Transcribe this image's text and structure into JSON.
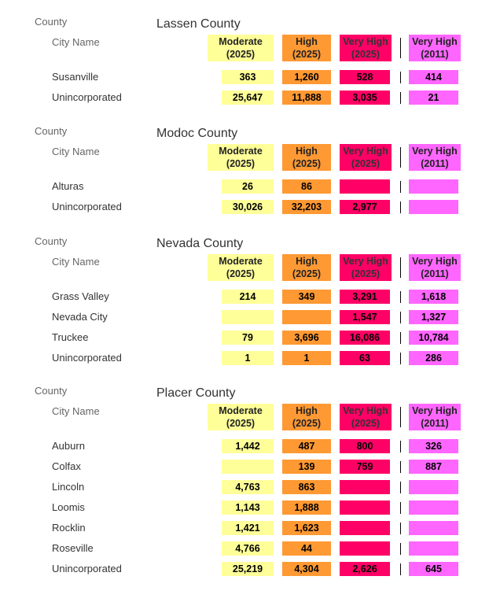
{
  "labels": {
    "county": "County",
    "city_name": "City Name"
  },
  "headers": {
    "moderate_2025": [
      "Moderate",
      "(2025)"
    ],
    "high_2025": [
      "High",
      "(2025)"
    ],
    "very_high_2025": [
      "Very High",
      "(2025)"
    ],
    "very_high_2011": [
      "Very High",
      "(2011)"
    ]
  },
  "colors": {
    "moderate": "#ffff99",
    "high": "#ff9933",
    "very_high": "#ff0066",
    "very_high_2011": "#ff66ff"
  },
  "counties": [
    {
      "name": "Lassen County",
      "rows": [
        {
          "city": "Susanville",
          "moderate": "363",
          "high": "1,260",
          "very_high_2025": "528",
          "very_high_2011": "414"
        },
        {
          "city": "Unincorporated",
          "moderate": "25,647",
          "high": "11,888",
          "very_high_2025": "3,035",
          "very_high_2011": "21"
        }
      ]
    },
    {
      "name": "Modoc County",
      "rows": [
        {
          "city": "Alturas",
          "moderate": "26",
          "high": "86",
          "very_high_2025": "",
          "very_high_2011": ""
        },
        {
          "city": "Unincorporated",
          "moderate": "30,026",
          "high": "32,203",
          "very_high_2025": "2,977",
          "very_high_2011": ""
        }
      ]
    },
    {
      "name": "Nevada County",
      "rows": [
        {
          "city": "Grass Valley",
          "moderate": "214",
          "high": "349",
          "very_high_2025": "3,291",
          "very_high_2011": "1,618"
        },
        {
          "city": "Nevada City",
          "moderate": "",
          "high": "",
          "very_high_2025": "1,547",
          "very_high_2011": "1,327"
        },
        {
          "city": "Truckee",
          "moderate": "79",
          "high": "3,696",
          "very_high_2025": "16,086",
          "very_high_2011": "10,784"
        },
        {
          "city": "Unincorporated",
          "moderate": "1",
          "high": "1",
          "very_high_2025": "63",
          "very_high_2011": "286"
        }
      ]
    },
    {
      "name": "Placer County",
      "rows": [
        {
          "city": "Auburn",
          "moderate": "1,442",
          "high": "487",
          "very_high_2025": "800",
          "very_high_2011": "326"
        },
        {
          "city": "Colfax",
          "moderate": "",
          "high": "139",
          "very_high_2025": "759",
          "very_high_2011": "887"
        },
        {
          "city": "Lincoln",
          "moderate": "4,763",
          "high": "863",
          "very_high_2025": "",
          "very_high_2011": ""
        },
        {
          "city": "Loomis",
          "moderate": "1,143",
          "high": "1,888",
          "very_high_2025": "",
          "very_high_2011": ""
        },
        {
          "city": "Rocklin",
          "moderate": "1,421",
          "high": "1,623",
          "very_high_2025": "",
          "very_high_2011": ""
        },
        {
          "city": "Roseville",
          "moderate": "4,766",
          "high": "44",
          "very_high_2025": "",
          "very_high_2011": ""
        },
        {
          "city": "Unincorporated",
          "moderate": "25,219",
          "high": "4,304",
          "very_high_2025": "2,626",
          "very_high_2011": "645"
        }
      ]
    }
  ]
}
